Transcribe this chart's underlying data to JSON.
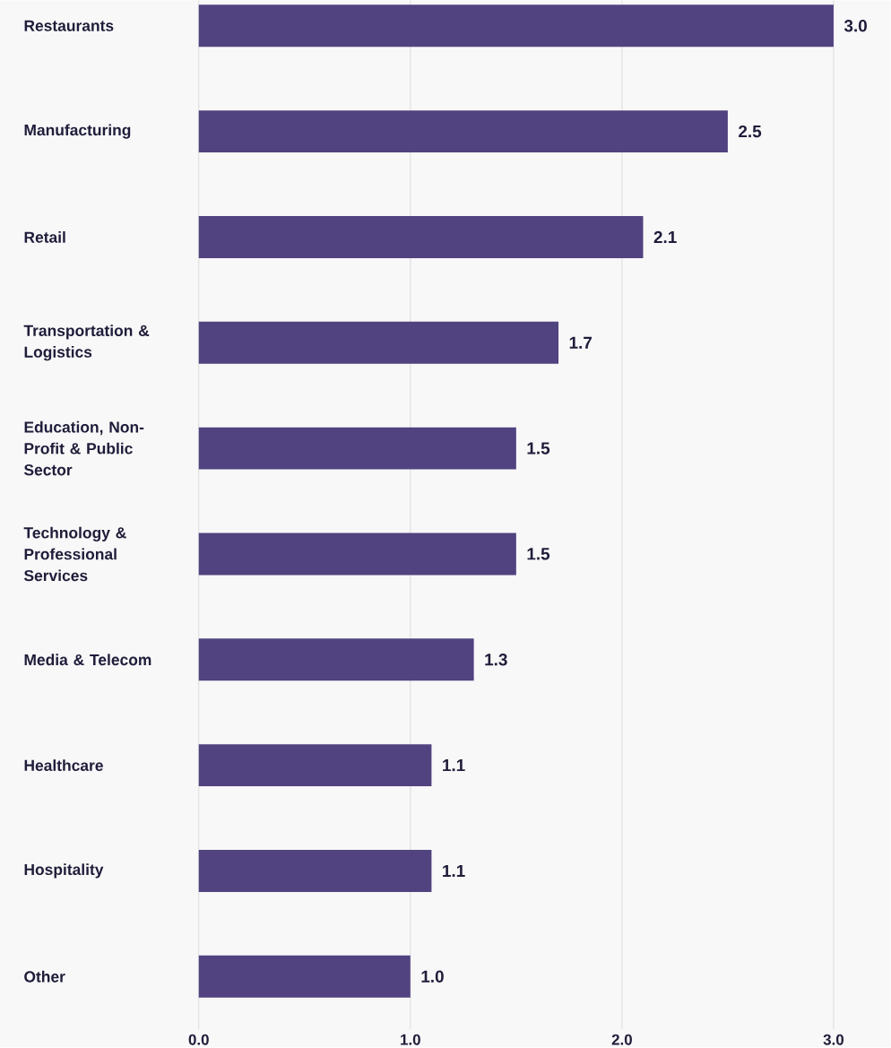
{
  "chart_data": {
    "type": "bar",
    "orientation": "horizontal",
    "categories": [
      "Restaurants",
      "Manufacturing",
      "Retail",
      "Transportation & Logistics",
      "Education, Non-Profit & Public Sector",
      "Technology & Professional Services",
      "Media & Telecom",
      "Healthcare",
      "Hospitality",
      "Other"
    ],
    "values": [
      3.0,
      2.5,
      2.1,
      1.7,
      1.5,
      1.5,
      1.3,
      1.1,
      1.1,
      1.0
    ],
    "value_labels": [
      "3.0",
      "2.5",
      "2.1",
      "1.7",
      "1.5",
      "1.5",
      "1.3",
      "1.1",
      "1.1",
      "1.0"
    ],
    "color": "#514280",
    "xlim": [
      0,
      3
    ],
    "xticks": [
      {
        "value": 0,
        "label": "0.0"
      },
      {
        "value": 1,
        "label": "1.0"
      },
      {
        "value": 2,
        "label": "2.0"
      },
      {
        "value": 3,
        "label": "3.0"
      }
    ],
    "grid": "x"
  }
}
